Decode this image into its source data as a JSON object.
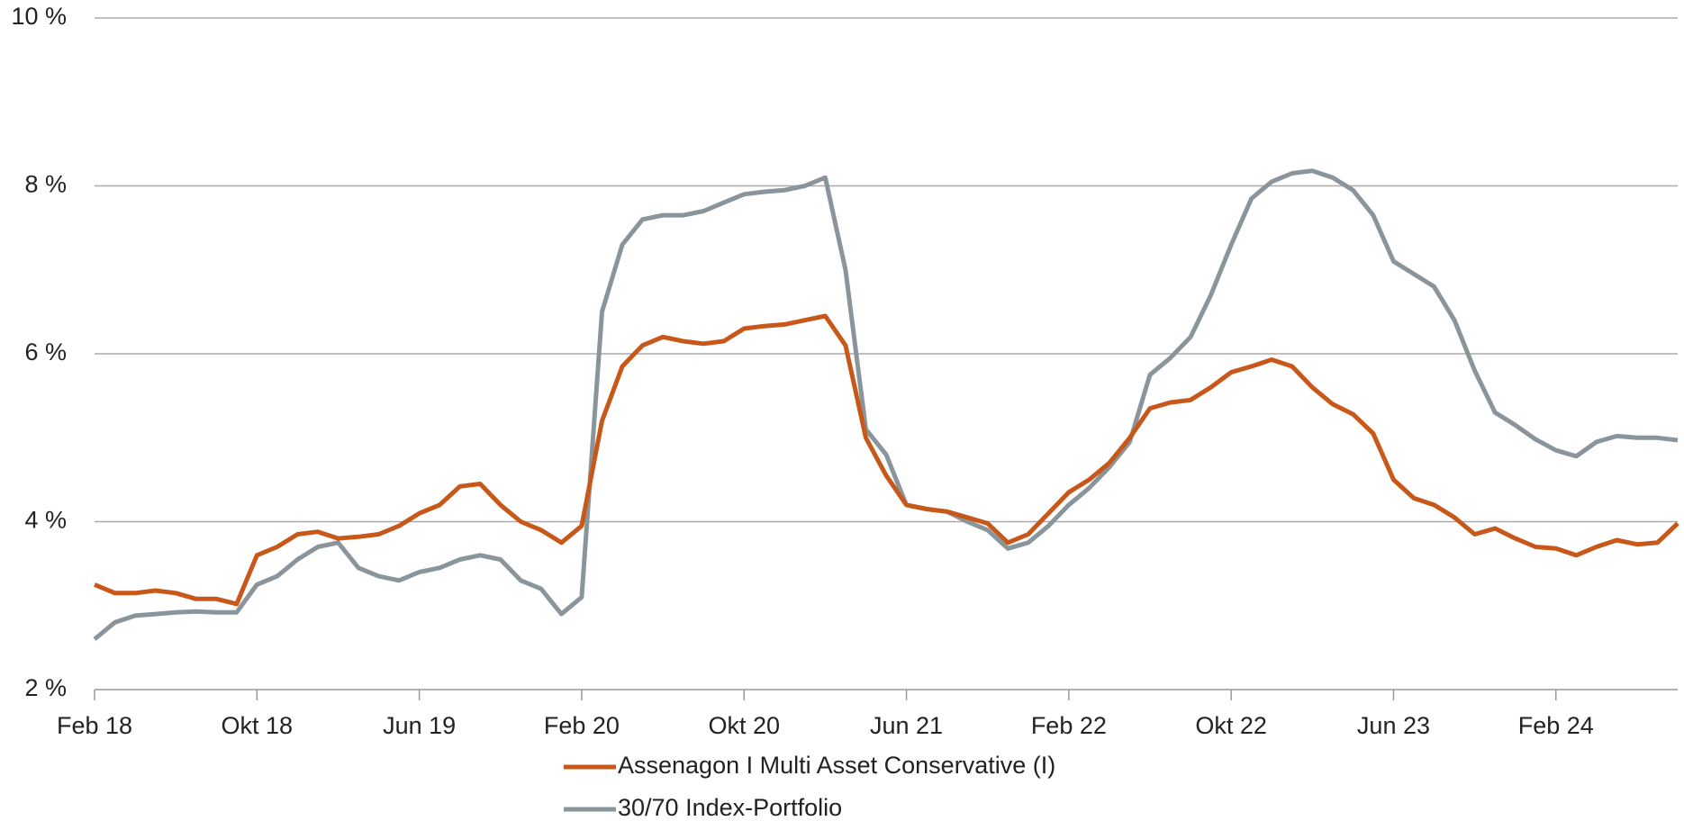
{
  "chart_data": {
    "type": "line",
    "x": [
      "2018-02",
      "2018-03",
      "2018-04",
      "2018-05",
      "2018-06",
      "2018-07",
      "2018-08",
      "2018-09",
      "2018-10",
      "2018-11",
      "2018-12",
      "2019-01",
      "2019-02",
      "2019-03",
      "2019-04",
      "2019-05",
      "2019-06",
      "2019-07",
      "2019-08",
      "2019-09",
      "2019-10",
      "2019-11",
      "2019-12",
      "2020-01",
      "2020-02",
      "2020-03",
      "2020-04",
      "2020-05",
      "2020-06",
      "2020-07",
      "2020-08",
      "2020-09",
      "2020-10",
      "2020-11",
      "2020-12",
      "2021-01",
      "2021-02",
      "2021-03",
      "2021-04",
      "2021-05",
      "2021-06",
      "2021-07",
      "2021-08",
      "2021-09",
      "2021-10",
      "2021-11",
      "2021-12",
      "2022-01",
      "2022-02",
      "2022-03",
      "2022-04",
      "2022-05",
      "2022-06",
      "2022-07",
      "2022-08",
      "2022-09",
      "2022-10",
      "2022-11",
      "2022-12",
      "2023-01",
      "2023-02",
      "2023-03",
      "2023-04",
      "2023-05",
      "2023-06",
      "2023-07",
      "2023-08",
      "2023-09",
      "2023-10",
      "2023-11",
      "2023-12",
      "2024-01",
      "2024-02",
      "2024-03",
      "2024-04",
      "2024-05",
      "2024-06",
      "2024-07",
      "2024-08"
    ],
    "series": [
      {
        "name": "Assenagon I Multi Asset Conservative (I)",
        "color": "#c8581a",
        "values": [
          3.25,
          3.15,
          3.15,
          3.18,
          3.15,
          3.08,
          3.08,
          3.02,
          3.6,
          3.7,
          3.85,
          3.88,
          3.8,
          3.82,
          3.85,
          3.95,
          4.1,
          4.2,
          4.42,
          4.45,
          4.2,
          4.0,
          3.9,
          3.75,
          3.95,
          5.2,
          5.85,
          6.1,
          6.2,
          6.15,
          6.12,
          6.15,
          6.3,
          6.33,
          6.35,
          6.4,
          6.45,
          6.1,
          5.0,
          4.55,
          4.2,
          4.15,
          4.12,
          4.05,
          3.98,
          3.75,
          3.85,
          4.1,
          4.35,
          4.5,
          4.7,
          5.0,
          5.35,
          5.42,
          5.45,
          5.6,
          5.78,
          5.85,
          5.93,
          5.85,
          5.6,
          5.4,
          5.28,
          5.05,
          4.5,
          4.28,
          4.2,
          4.05,
          3.85,
          3.92,
          3.8,
          3.7,
          3.68,
          3.6,
          3.7,
          3.78,
          3.73,
          3.75,
          3.98
        ]
      },
      {
        "name": "30/70 Index-Portfolio",
        "color": "#8a959b",
        "values": [
          2.6,
          2.8,
          2.88,
          2.9,
          2.92,
          2.93,
          2.92,
          2.92,
          3.25,
          3.35,
          3.55,
          3.7,
          3.75,
          3.45,
          3.35,
          3.3,
          3.4,
          3.45,
          3.55,
          3.6,
          3.55,
          3.3,
          3.2,
          2.9,
          3.1,
          6.5,
          7.3,
          7.6,
          7.65,
          7.65,
          7.7,
          7.8,
          7.9,
          7.93,
          7.95,
          8.0,
          8.1,
          7.0,
          5.1,
          4.8,
          4.2,
          4.15,
          4.12,
          4.0,
          3.9,
          3.68,
          3.75,
          3.95,
          4.2,
          4.4,
          4.65,
          4.95,
          5.75,
          5.95,
          6.2,
          6.7,
          7.3,
          7.85,
          8.05,
          8.15,
          8.18,
          8.1,
          7.95,
          7.65,
          7.1,
          6.95,
          6.8,
          6.4,
          5.8,
          5.3,
          5.15,
          4.98,
          4.85,
          4.78,
          4.95,
          5.02,
          5.0,
          5.0,
          4.97
        ]
      }
    ],
    "xticks": [
      {
        "value": "2018-02",
        "label": "Feb 18"
      },
      {
        "value": "2018-10",
        "label": "Okt 18"
      },
      {
        "value": "2019-06",
        "label": "Jun 19"
      },
      {
        "value": "2020-02",
        "label": "Feb 20"
      },
      {
        "value": "2020-10",
        "label": "Okt 20"
      },
      {
        "value": "2021-06",
        "label": "Jun 21"
      },
      {
        "value": "2022-02",
        "label": "Feb 22"
      },
      {
        "value": "2022-10",
        "label": "Okt 22"
      },
      {
        "value": "2023-06",
        "label": "Jun 23"
      },
      {
        "value": "2024-02",
        "label": "Feb 24"
      }
    ],
    "ylim": [
      2,
      10
    ],
    "yticks": [
      {
        "value": 2,
        "label": "2 %"
      },
      {
        "value": 4,
        "label": "4 %"
      },
      {
        "value": 6,
        "label": "6 %"
      },
      {
        "value": 8,
        "label": "8 %"
      },
      {
        "value": 10,
        "label": "10 %"
      }
    ],
    "grid": true,
    "legend": "bottom"
  }
}
